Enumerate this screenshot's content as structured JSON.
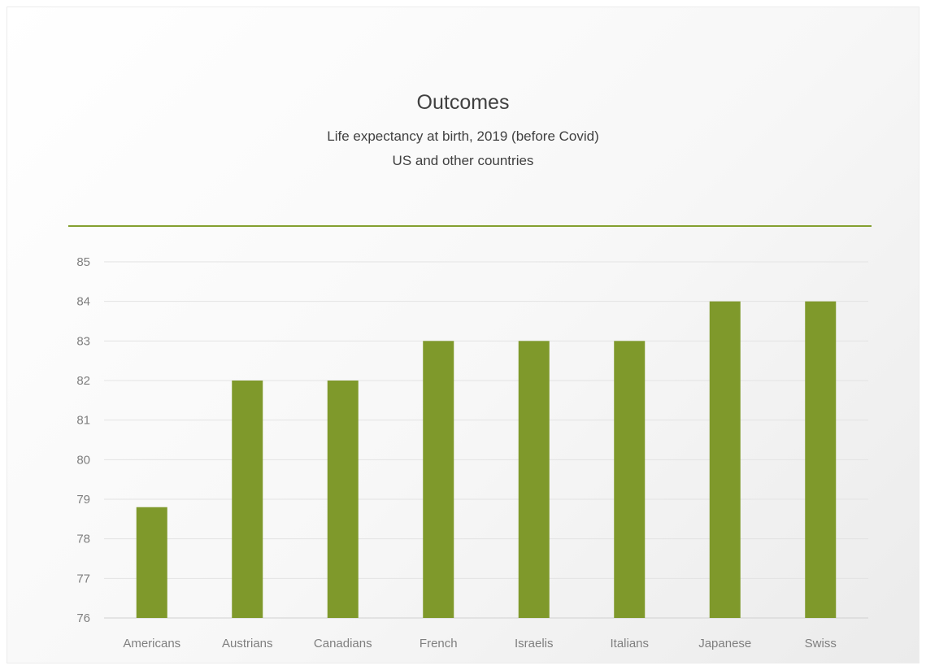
{
  "chart_data": {
    "type": "bar",
    "title": "Outcomes",
    "subtitle_lines": [
      "Life expectancy at birth, 2019 (before Covid)",
      "US and other countries"
    ],
    "categories": [
      "Americans",
      "Austrians",
      "Canadians",
      "French",
      "Israelis",
      "Italians",
      "Japanese",
      "Swiss"
    ],
    "values": [
      78.8,
      82,
      82,
      83,
      83,
      83,
      84,
      84
    ],
    "ylim": [
      76,
      85
    ],
    "yticks": [
      76,
      77,
      78,
      79,
      80,
      81,
      82,
      83,
      84,
      85
    ],
    "xlabel": "",
    "ylabel": "",
    "grid": true,
    "legend": "none",
    "colors": {
      "bar": "#7f992b",
      "accent_line": "#84a030",
      "gridline": "#e3e3e3",
      "text": "#404040",
      "tick_text": "#7f7f7f"
    }
  }
}
